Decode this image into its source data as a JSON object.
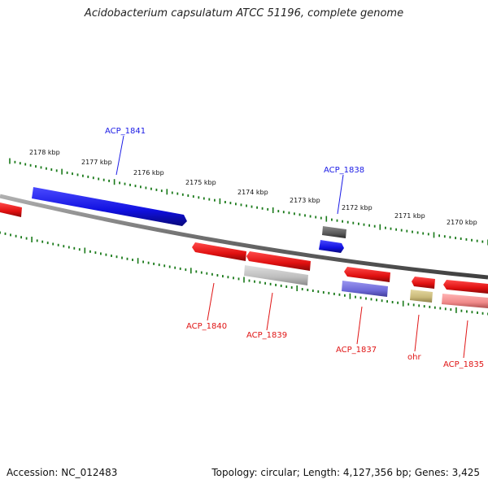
{
  "title": "Acidobacterium capsulatum ATCC 51196, complete genome",
  "footer": {
    "accession": "Accession: NC_012483",
    "stats": "Topology: circular; Length: 4,127,356 bp; Genes: 3,425"
  },
  "ruler_labels": [
    "2178 kbp",
    "2177 kbp",
    "2176 kbp",
    "2175 kbp",
    "2174 kbp",
    "2173 kbp",
    "2172 kbp",
    "2171 kbp",
    "2170 kbp"
  ],
  "genes": [
    {
      "label": "ACP_1841",
      "color": "#1a1ae6",
      "strand": "forward"
    },
    {
      "label": "ACP_1838",
      "color": "#1a1ae6",
      "strand": "forward"
    },
    {
      "label": "ACP_1840",
      "color": "#e01414",
      "strand": "reverse"
    },
    {
      "label": "ACP_1839",
      "color": "#e01414",
      "strand": "reverse"
    },
    {
      "label": "ACP_1837",
      "color": "#e01414",
      "strand": "reverse"
    },
    {
      "label": "ohr",
      "color": "#e01414",
      "strand": "reverse"
    },
    {
      "label": "ACP_1835",
      "color": "#e01414",
      "strand": "reverse"
    }
  ],
  "colors": {
    "backbone": "#808080",
    "ticks": "#1a7a1a",
    "forward": "#1010e0",
    "reverse": "#e01010",
    "cog_gray": "#bdbdbd",
    "cog_dark": "#5a5a5a",
    "cog_purple": "#6e6ad8",
    "cog_olive": "#c8b878",
    "cog_pink": "#f08a8a"
  }
}
